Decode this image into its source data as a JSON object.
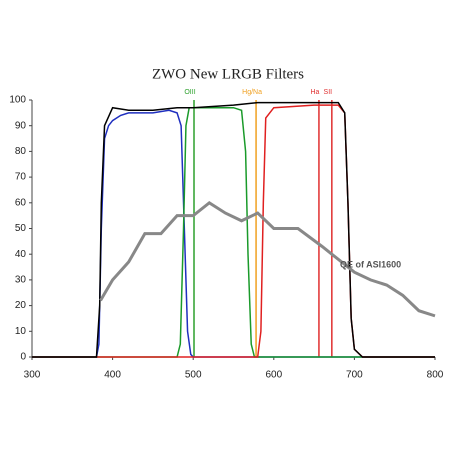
{
  "chart_data": {
    "type": "line",
    "title": "ZWO New LRGB Filters",
    "xlim": [
      300,
      800
    ],
    "xticks": [
      300,
      400,
      500,
      600,
      700,
      800
    ],
    "ylim": [
      0,
      100
    ],
    "yticks": [
      0,
      10,
      20,
      30,
      40,
      50,
      60,
      70,
      80,
      90,
      100
    ],
    "series": [
      {
        "color": "#1f2fbf",
        "x": [
          300,
          380,
          383,
          386,
          390,
          395,
          400,
          410,
          420,
          450,
          470,
          480,
          485,
          490,
          493,
          497,
          500,
          800
        ],
        "values": [
          0,
          0,
          5,
          50,
          85,
          90,
          92,
          94,
          95,
          95,
          96,
          95,
          90,
          40,
          10,
          1,
          0,
          0
        ]
      },
      {
        "color": "#1a9a2a",
        "x": [
          300,
          480,
          484,
          488,
          491,
          495,
          520,
          550,
          560,
          565,
          568,
          572,
          576,
          800
        ],
        "values": [
          0,
          0,
          5,
          50,
          90,
          97,
          97,
          97,
          96,
          80,
          40,
          5,
          0,
          0
        ]
      },
      {
        "color": "#e02020",
        "x": [
          300,
          580,
          584,
          587,
          590,
          600,
          650,
          680,
          688,
          692,
          696,
          700,
          710,
          800
        ],
        "values": [
          0,
          0,
          10,
          60,
          93,
          97,
          98,
          98,
          95,
          60,
          15,
          3,
          0,
          0
        ]
      },
      {
        "color": "#000000",
        "x": [
          300,
          380,
          384,
          386,
          390,
          400,
          420,
          450,
          480,
          500,
          550,
          580,
          620,
          650,
          680,
          688,
          692,
          696,
          700,
          710,
          800
        ],
        "values": [
          0,
          0,
          20,
          60,
          90,
          97,
          96,
          96,
          97,
          97,
          98,
          99,
          99,
          99,
          99,
          95,
          60,
          15,
          3,
          0,
          0
        ]
      },
      {
        "name": "QE of ASI1600",
        "color": "#888888",
        "x": [
          385,
          400,
          420,
          440,
          460,
          480,
          500,
          520,
          540,
          560,
          580,
          600,
          630,
          660,
          680,
          700,
          720,
          740,
          760,
          780,
          800
        ],
        "values": [
          22,
          30,
          37,
          48,
          48,
          55,
          55,
          60,
          56,
          53,
          56,
          50,
          50,
          43,
          38,
          33,
          30,
          28,
          24,
          18,
          16
        ]
      }
    ],
    "lines": [
      {
        "label": "OIII",
        "x": 501,
        "color": "#2ca02c"
      },
      {
        "label": "Hg/Na",
        "x": 578,
        "color": "#f0a020"
      },
      {
        "label": "Ha",
        "x": 656,
        "color": "#e03030"
      },
      {
        "label": "SII",
        "x": 672,
        "color": "#e03030"
      }
    ]
  }
}
